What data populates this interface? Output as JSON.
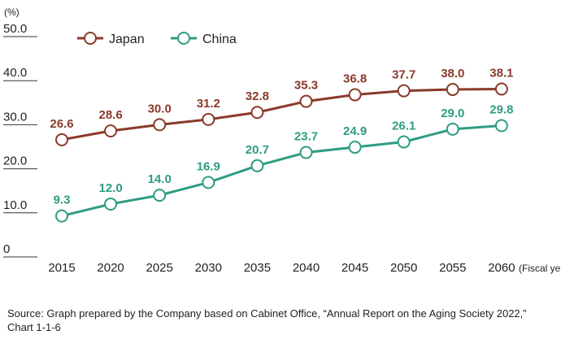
{
  "chart_data": {
    "type": "line",
    "unit_label": "(%)",
    "x_unit_label": "(Fiscal year)",
    "categories": [
      "2015",
      "2020",
      "2025",
      "2030",
      "2035",
      "2040",
      "2045",
      "2050",
      "2055",
      "2060"
    ],
    "y_ticks": [
      "50.0",
      "40.0",
      "30.0",
      "20.0",
      "10.0",
      "0"
    ],
    "ylim": [
      0,
      50
    ],
    "series": [
      {
        "name": "Japan",
        "color": "#8a3a2a",
        "values": [
          26.6,
          28.6,
          30.0,
          31.2,
          32.8,
          35.3,
          36.8,
          37.7,
          38.0,
          38.1
        ],
        "labels": [
          "26.6",
          "28.6",
          "30.0",
          "31.2",
          "32.8",
          "35.3",
          "36.8",
          "37.7",
          "38.0",
          "38.1"
        ]
      },
      {
        "name": "China",
        "color": "#2f9c83",
        "values": [
          9.3,
          12.0,
          14.0,
          16.9,
          20.7,
          23.7,
          24.9,
          26.1,
          29.0,
          29.8
        ],
        "labels": [
          "9.3",
          "12.0",
          "14.0",
          "16.9",
          "20.7",
          "23.7",
          "24.9",
          "26.1",
          "29.0",
          "29.8"
        ]
      }
    ],
    "gridline_color": "#333333"
  },
  "source_text": "Source: Graph prepared by the Company based on Cabinet Office, “Annual Report on the Aging Society 2022,” Chart 1-1-6"
}
